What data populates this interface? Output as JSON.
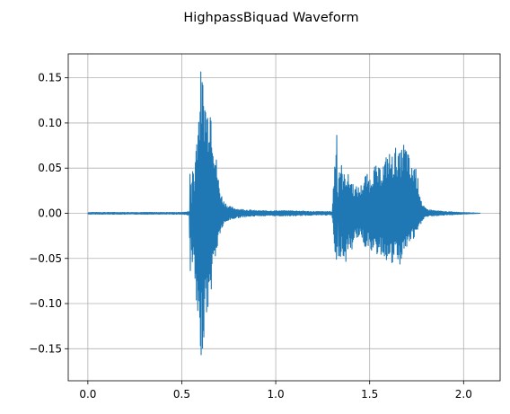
{
  "chart_data": {
    "type": "line",
    "title": "HighpassBiquad Waveform",
    "xlabel": "",
    "ylabel": "",
    "xlim": [
      -0.1045,
      2.1945
    ],
    "ylim": [
      -0.1855,
      0.1765
    ],
    "x_ticks": [
      0.0,
      0.5,
      1.0,
      1.5,
      2.0
    ],
    "x_tick_labels": [
      "0.0",
      "0.5",
      "1.0",
      "1.5",
      "2.0"
    ],
    "y_ticks": [
      -0.15,
      -0.1,
      -0.05,
      0.0,
      0.05,
      0.1,
      0.15
    ],
    "y_tick_labels": [
      "−0.15",
      "−0.10",
      "−0.05",
      "0.00",
      "0.05",
      "0.10",
      "0.15"
    ],
    "grid": true,
    "legend": "none",
    "series": [
      {
        "color": "#1f77b4",
        "x": [
          0.0,
          0.5,
          0.54,
          0.545,
          0.55,
          0.555,
          0.56,
          0.565,
          0.57,
          0.58,
          0.59,
          0.6,
          0.61,
          0.62,
          0.63,
          0.64,
          0.65,
          0.66,
          0.67,
          0.68,
          0.69,
          0.7,
          0.72,
          0.75,
          0.8,
          0.9,
          1.0,
          1.1,
          1.2,
          1.3,
          1.325,
          1.33,
          1.335,
          1.34,
          1.35,
          1.36,
          1.37,
          1.38,
          1.4,
          1.42,
          1.45,
          1.48,
          1.5,
          1.52,
          1.55,
          1.58,
          1.6,
          1.62,
          1.64,
          1.66,
          1.68,
          1.7,
          1.72,
          1.74,
          1.76,
          1.78,
          1.8,
          1.85,
          1.9,
          2.0,
          2.09
        ],
        "upper": [
          0.001,
          0.001,
          0.002,
          0.09,
          0.01,
          0.04,
          0.07,
          0.03,
          0.06,
          0.1,
          0.12,
          0.16,
          0.155,
          0.14,
          0.13,
          0.12,
          0.14,
          0.12,
          0.09,
          0.07,
          0.05,
          0.03,
          0.015,
          0.008,
          0.005,
          0.003,
          0.003,
          0.003,
          0.002,
          0.002,
          0.105,
          0.01,
          0.05,
          0.06,
          0.055,
          0.04,
          0.05,
          0.045,
          0.04,
          0.03,
          0.03,
          0.045,
          0.04,
          0.055,
          0.05,
          0.06,
          0.07,
          0.065,
          0.075,
          0.065,
          0.08,
          0.075,
          0.05,
          0.06,
          0.035,
          0.01,
          0.005,
          0.003,
          0.002,
          0.001,
          0.0
        ],
        "lower": [
          -0.001,
          -0.001,
          -0.002,
          -0.103,
          -0.02,
          -0.06,
          -0.08,
          -0.05,
          -0.09,
          -0.12,
          -0.16,
          -0.173,
          -0.15,
          -0.14,
          -0.11,
          -0.12,
          -0.1,
          -0.08,
          -0.06,
          -0.05,
          -0.04,
          -0.025,
          -0.015,
          -0.008,
          -0.005,
          -0.003,
          -0.003,
          -0.003,
          -0.002,
          -0.002,
          -0.083,
          -0.01,
          -0.06,
          -0.055,
          -0.04,
          -0.05,
          -0.065,
          -0.04,
          -0.045,
          -0.03,
          -0.025,
          -0.04,
          -0.035,
          -0.05,
          -0.045,
          -0.05,
          -0.055,
          -0.06,
          -0.05,
          -0.06,
          -0.045,
          -0.04,
          -0.03,
          -0.03,
          -0.02,
          -0.008,
          -0.004,
          -0.003,
          -0.002,
          -0.001,
          0.0
        ]
      }
    ]
  }
}
